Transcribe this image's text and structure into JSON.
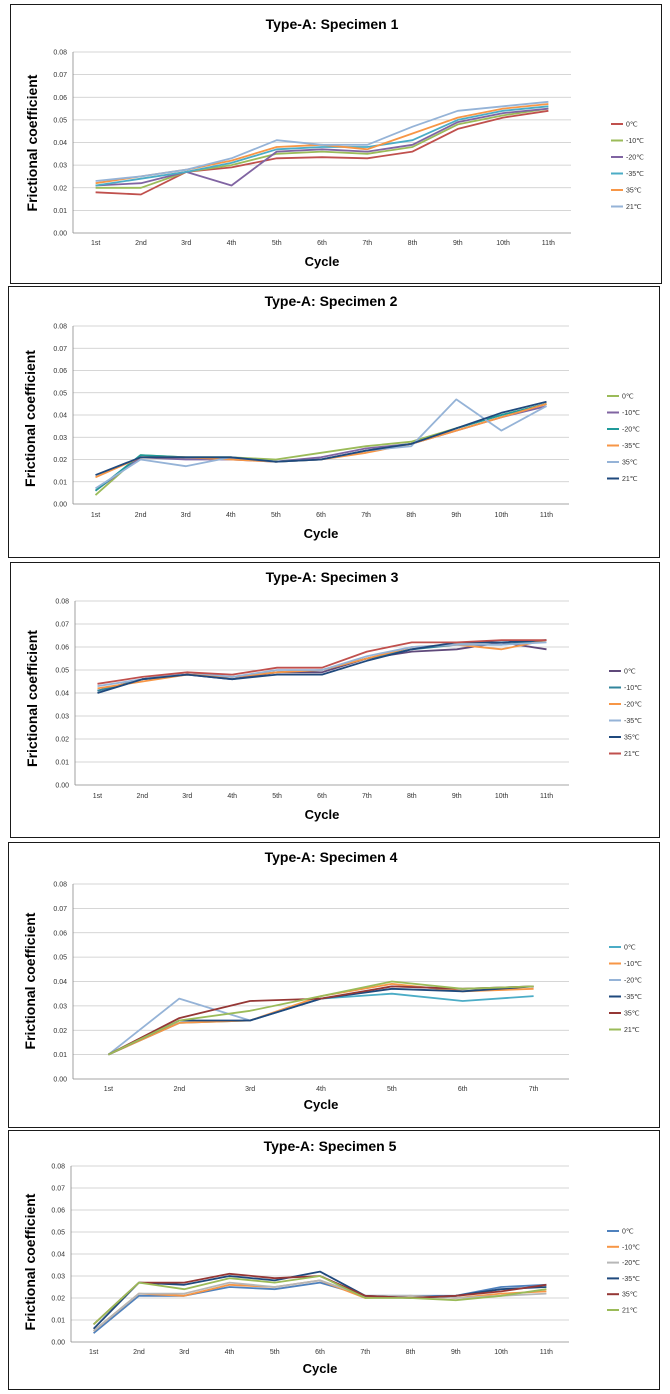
{
  "chart_data": [
    {
      "type": "line",
      "title": "Type-A: Specimen 1",
      "xlabel": "Cycle",
      "ylabel": "Frictional coefficient",
      "ylim": [
        0,
        0.08
      ],
      "yticks": [
        "0.00",
        "0.01",
        "0.02",
        "0.03",
        "0.04",
        "0.05",
        "0.06",
        "0.07",
        "0.08"
      ],
      "categories": [
        "1st",
        "2nd",
        "3rd",
        "4th",
        "5th",
        "6th",
        "7th",
        "8th",
        "9th",
        "10th",
        "11th"
      ],
      "series": [
        {
          "name": "0℃",
          "color": "#c0504d",
          "values": [
            0.018,
            0.017,
            0.027,
            0.029,
            0.033,
            0.0335,
            0.033,
            0.036,
            0.046,
            0.051,
            0.054
          ]
        },
        {
          "name": "-10℃",
          "color": "#9bbb59",
          "values": [
            0.02,
            0.02,
            0.027,
            0.03,
            0.035,
            0.036,
            0.035,
            0.038,
            0.048,
            0.052,
            0.055
          ]
        },
        {
          "name": "-20℃",
          "color": "#8064a2",
          "values": [
            0.021,
            0.022,
            0.027,
            0.021,
            0.036,
            0.037,
            0.036,
            0.039,
            0.049,
            0.053,
            0.055
          ]
        },
        {
          "name": "-35℃",
          "color": "#4bacc6",
          "values": [
            0.021,
            0.024,
            0.027,
            0.031,
            0.037,
            0.038,
            0.038,
            0.041,
            0.05,
            0.054,
            0.056
          ]
        },
        {
          "name": "35℃",
          "color": "#f79646",
          "values": [
            0.022,
            0.025,
            0.028,
            0.032,
            0.038,
            0.039,
            0.037,
            0.044,
            0.051,
            0.055,
            0.057
          ]
        },
        {
          "name": "21℃",
          "color": "#95b3d7",
          "values": [
            0.023,
            0.025,
            0.028,
            0.033,
            0.041,
            0.039,
            0.039,
            0.047,
            0.054,
            0.056,
            0.058
          ]
        }
      ]
    },
    {
      "type": "line",
      "title": "Type-A: Specimen 2",
      "xlabel": "Cycle",
      "ylabel": "Frictional coefficient",
      "ylim": [
        0,
        0.08
      ],
      "yticks": [
        "0.00",
        "0.01",
        "0.02",
        "0.03",
        "0.04",
        "0.05",
        "0.06",
        "0.07",
        "0.08"
      ],
      "categories": [
        "1st",
        "2nd",
        "3rd",
        "4th",
        "5th",
        "6th",
        "7th",
        "8th",
        "9th",
        "10th",
        "11th"
      ],
      "series": [
        {
          "name": "0℃",
          "color": "#9bbb59",
          "values": [
            0.004,
            0.022,
            0.021,
            0.021,
            0.02,
            0.023,
            0.026,
            0.028,
            0.034,
            0.04,
            0.045
          ]
        },
        {
          "name": "-10℃",
          "color": "#8064a2",
          "values": [
            0.006,
            0.021,
            0.02,
            0.02,
            0.019,
            0.021,
            0.025,
            0.027,
            0.033,
            0.039,
            0.044
          ]
        },
        {
          "name": "-20℃",
          "color": "#1f9a9a",
          "values": [
            0.006,
            0.022,
            0.021,
            0.021,
            0.019,
            0.02,
            0.024,
            0.027,
            0.034,
            0.04,
            0.045
          ]
        },
        {
          "name": "-35℃",
          "color": "#f79646",
          "values": [
            0.012,
            0.021,
            0.021,
            0.02,
            0.019,
            0.02,
            0.023,
            0.027,
            0.033,
            0.039,
            0.045
          ]
        },
        {
          "name": "35℃",
          "color": "#95b3d7",
          "values": [
            0.007,
            0.02,
            0.017,
            0.021,
            0.019,
            0.02,
            0.024,
            0.026,
            0.047,
            0.033,
            0.044
          ]
        },
        {
          "name": "21℃",
          "color": "#1f497d",
          "values": [
            0.013,
            0.021,
            0.021,
            0.021,
            0.019,
            0.02,
            0.024,
            0.027,
            0.034,
            0.041,
            0.046
          ]
        }
      ]
    },
    {
      "type": "line",
      "title": "Type-A: Specimen 3",
      "xlabel": "Cycle",
      "ylabel": "Frictional coefficient",
      "ylim": [
        0,
        0.08
      ],
      "yticks": [
        "0.00",
        "0.01",
        "0.02",
        "0.03",
        "0.04",
        "0.05",
        "0.06",
        "0.07",
        "0.08"
      ],
      "categories": [
        "1st",
        "2nd",
        "3rd",
        "4th",
        "5th",
        "6th",
        "7th",
        "8th",
        "9th",
        "10th",
        "11th"
      ],
      "series": [
        {
          "name": "0℃",
          "color": "#5f497a",
          "values": [
            0.041,
            0.046,
            0.048,
            0.046,
            0.049,
            0.049,
            0.055,
            0.058,
            0.059,
            0.062,
            0.059
          ]
        },
        {
          "name": "-10℃",
          "color": "#31859c",
          "values": [
            0.041,
            0.046,
            0.048,
            0.047,
            0.049,
            0.05,
            0.055,
            0.059,
            0.061,
            0.061,
            0.063
          ]
        },
        {
          "name": "-20℃",
          "color": "#f79646",
          "values": [
            0.042,
            0.045,
            0.048,
            0.047,
            0.049,
            0.05,
            0.055,
            0.06,
            0.061,
            0.059,
            0.063
          ]
        },
        {
          "name": "-35℃",
          "color": "#95b3d7",
          "values": [
            0.043,
            0.046,
            0.049,
            0.047,
            0.05,
            0.05,
            0.056,
            0.06,
            0.061,
            0.061,
            0.062
          ]
        },
        {
          "name": "35℃",
          "color": "#1f497d",
          "values": [
            0.04,
            0.046,
            0.048,
            0.046,
            0.048,
            0.048,
            0.054,
            0.059,
            0.062,
            0.062,
            0.063
          ]
        },
        {
          "name": "21℃",
          "color": "#c0504d",
          "values": [
            0.044,
            0.047,
            0.049,
            0.048,
            0.051,
            0.051,
            0.058,
            0.062,
            0.062,
            0.063,
            0.063
          ]
        }
      ]
    },
    {
      "type": "line",
      "title": "Type-A: Specimen 4",
      "xlabel": "Cycle",
      "ylabel": "Frictional coefficient",
      "ylim": [
        0,
        0.08
      ],
      "yticks": [
        "0.00",
        "0.01",
        "0.02",
        "0.03",
        "0.04",
        "0.05",
        "0.06",
        "0.07",
        "0.08"
      ],
      "categories": [
        "1st",
        "2nd",
        "3rd",
        "4th",
        "5th",
        "6th",
        "7th"
      ],
      "series": [
        {
          "name": "0℃",
          "color": "#4bacc6",
          "values": [
            0.01,
            0.023,
            0.024,
            0.033,
            0.035,
            0.032,
            0.034
          ]
        },
        {
          "name": "-10℃",
          "color": "#f79646",
          "values": [
            0.01,
            0.023,
            0.024,
            0.034,
            0.039,
            0.036,
            0.037
          ]
        },
        {
          "name": "-20℃",
          "color": "#95b3d7",
          "values": [
            0.01,
            0.033,
            0.024,
            0.033,
            0.038,
            0.037,
            0.038
          ]
        },
        {
          "name": "-35℃",
          "color": "#1f497d",
          "values": [
            0.01,
            0.024,
            0.024,
            0.033,
            0.037,
            0.036,
            0.038
          ]
        },
        {
          "name": "35℃",
          "color": "#953735",
          "values": [
            0.01,
            0.025,
            0.032,
            0.033,
            0.038,
            0.037,
            0.038
          ]
        },
        {
          "name": "21℃",
          "color": "#9bbb59",
          "values": [
            0.01,
            0.024,
            0.028,
            0.034,
            0.04,
            0.037,
            0.038
          ]
        }
      ]
    },
    {
      "type": "line",
      "title": "Type-A: Specimen 5",
      "xlabel": "Cycle",
      "ylabel": "Frictional coefficient",
      "ylim": [
        0,
        0.08
      ],
      "yticks": [
        "0.00",
        "0.01",
        "0.02",
        "0.03",
        "0.04",
        "0.05",
        "0.06",
        "0.07",
        "0.08"
      ],
      "categories": [
        "1st",
        "2nd",
        "3rd",
        "4th",
        "5th",
        "6th",
        "7th",
        "8th",
        "9th",
        "10th",
        "11th"
      ],
      "series": [
        {
          "name": "0℃",
          "color": "#4f81bd",
          "values": [
            0.004,
            0.021,
            0.021,
            0.025,
            0.024,
            0.027,
            0.021,
            0.021,
            0.021,
            0.025,
            0.026
          ]
        },
        {
          "name": "-10℃",
          "color": "#f79646",
          "values": [
            0.005,
            0.022,
            0.021,
            0.026,
            0.025,
            0.028,
            0.02,
            0.021,
            0.02,
            0.022,
            0.023
          ]
        },
        {
          "name": "-20℃",
          "color": "#b7b7b7",
          "values": [
            0.005,
            0.022,
            0.022,
            0.027,
            0.025,
            0.028,
            0.021,
            0.021,
            0.02,
            0.021,
            0.022
          ]
        },
        {
          "name": "-35℃",
          "color": "#1f497d",
          "values": [
            0.006,
            0.027,
            0.026,
            0.03,
            0.028,
            0.032,
            0.021,
            0.02,
            0.021,
            0.024,
            0.025
          ]
        },
        {
          "name": "35℃",
          "color": "#953735",
          "values": [
            0.008,
            0.027,
            0.027,
            0.031,
            0.029,
            0.03,
            0.021,
            0.02,
            0.021,
            0.023,
            0.026
          ]
        },
        {
          "name": "21℃",
          "color": "#9bbb59",
          "values": [
            0.008,
            0.027,
            0.024,
            0.029,
            0.027,
            0.03,
            0.02,
            0.02,
            0.019,
            0.021,
            0.024
          ]
        }
      ]
    }
  ]
}
